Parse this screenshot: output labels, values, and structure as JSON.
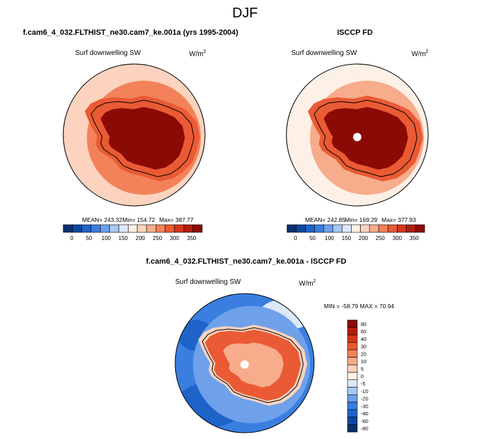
{
  "figure": {
    "title": "DJF"
  },
  "chart_data": [
    {
      "type": "heatmap",
      "projection": "south-polar-stereographic",
      "title": "f.cam6_4_032.FLTHIST_ne30.cam7_ke.001a (yrs 1995-2004)",
      "variable_label": "Surf downwelling SW",
      "units_label": "W/m",
      "units_superscript": "2",
      "stats": {
        "mean_label": "MEAN= 243.32",
        "min_label": "Min= 154.72",
        "max_label": "Max= 387.77",
        "mean": 243.32,
        "min": 154.72,
        "max": 387.77
      },
      "colorbar": {
        "orientation": "horizontal",
        "tick_labels": [
          "0",
          "50",
          "100",
          "150",
          "200",
          "250",
          "300",
          "350"
        ],
        "colors": [
          "#08306b",
          "#0d47a1",
          "#1e64c8",
          "#3a7fe0",
          "#6ea1ea",
          "#a8c8f2",
          "#dce9f8",
          "#fdf0e6",
          "#fbd3be",
          "#f7ac8b",
          "#f3825a",
          "#ea5a34",
          "#d6361b",
          "#b41d0c",
          "#8b0a05"
        ]
      },
      "regions": {
        "ocean_far": 3,
        "ocean_near": 5,
        "coast": 6,
        "interior": 7
      }
    },
    {
      "type": "heatmap",
      "projection": "south-polar-stereographic",
      "title": "ISCCP FD",
      "variable_label": "Surf downwelling SW",
      "units_label": "W/m",
      "units_superscript": "2",
      "stats": {
        "mean_label": "MEAN= 242.85",
        "min_label": "Min= 169.29",
        "max_label": "Max= 377.93",
        "mean": 242.85,
        "min": 169.29,
        "max": 377.93
      },
      "colorbar": {
        "orientation": "horizontal",
        "tick_labels": [
          "0",
          "50",
          "100",
          "150",
          "200",
          "250",
          "300",
          "350"
        ],
        "colors": [
          "#08306b",
          "#0d47a1",
          "#1e64c8",
          "#3a7fe0",
          "#6ea1ea",
          "#a8c8f2",
          "#dce9f8",
          "#fdf0e6",
          "#fbd3be",
          "#f7ac8b",
          "#f3825a",
          "#ea5a34",
          "#d6361b",
          "#b41d0c",
          "#8b0a05"
        ]
      },
      "regions": {
        "ocean_far": 2,
        "ocean_near": 4,
        "coast": 6,
        "interior": 7
      }
    },
    {
      "type": "heatmap",
      "projection": "south-polar-stereographic",
      "title": "f.cam6_4_032.FLTHIST_ne30.cam7_ke.001a - ISCCP FD",
      "variable_label": "Surf downwelling SW",
      "units_label": "W/m",
      "units_superscript": "2",
      "stats": {
        "minmax_label": "MIN = -58.79 MAX =  70.94",
        "min": -58.79,
        "max": 70.94
      },
      "colorbar": {
        "orientation": "vertical",
        "tick_labels": [
          "80",
          "60",
          "40",
          "30",
          "20",
          "10",
          "5",
          "0",
          "-5",
          "-10",
          "-20",
          "-30",
          "-40",
          "-60",
          "-80"
        ],
        "colors": [
          "#8b0a05",
          "#b41d0c",
          "#d6361b",
          "#ea5a34",
          "#f3825a",
          "#f7ac8b",
          "#fbd3be",
          "#fdf0e6",
          "#dce9f8",
          "#a8c8f2",
          "#6ea1ea",
          "#3a7fe0",
          "#1e64c8",
          "#0d47a1",
          "#08306b"
        ]
      }
    }
  ]
}
